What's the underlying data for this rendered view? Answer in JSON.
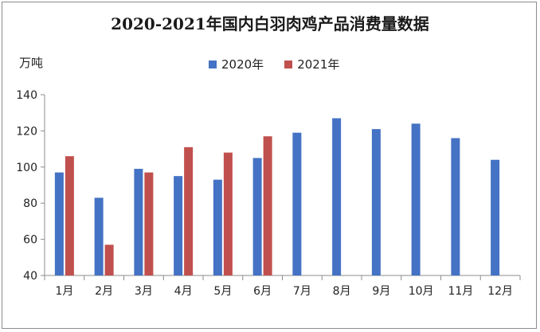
{
  "chart_data": {
    "type": "bar",
    "title": "2020-2021年国内白羽肉鸡产品消费量数据",
    "ylabel": "万吨",
    "xlabel": "",
    "ylim": [
      40,
      140
    ],
    "yticks": [
      40,
      60,
      80,
      100,
      120,
      140
    ],
    "categories": [
      "1月",
      "2月",
      "3月",
      "4月",
      "5月",
      "6月",
      "7月",
      "8月",
      "9月",
      "10月",
      "11月",
      "12月"
    ],
    "series": [
      {
        "name": "2020年",
        "color": "#4472c4",
        "values": [
          97,
          83,
          99,
          95,
          93,
          105,
          119,
          127,
          121,
          124,
          116,
          104
        ]
      },
      {
        "name": "2021年",
        "color": "#c0504d",
        "values": [
          106,
          57,
          97,
          111,
          108,
          117,
          null,
          null,
          null,
          null,
          null,
          null
        ]
      }
    ],
    "legend_position": "top-center",
    "grid": false
  }
}
